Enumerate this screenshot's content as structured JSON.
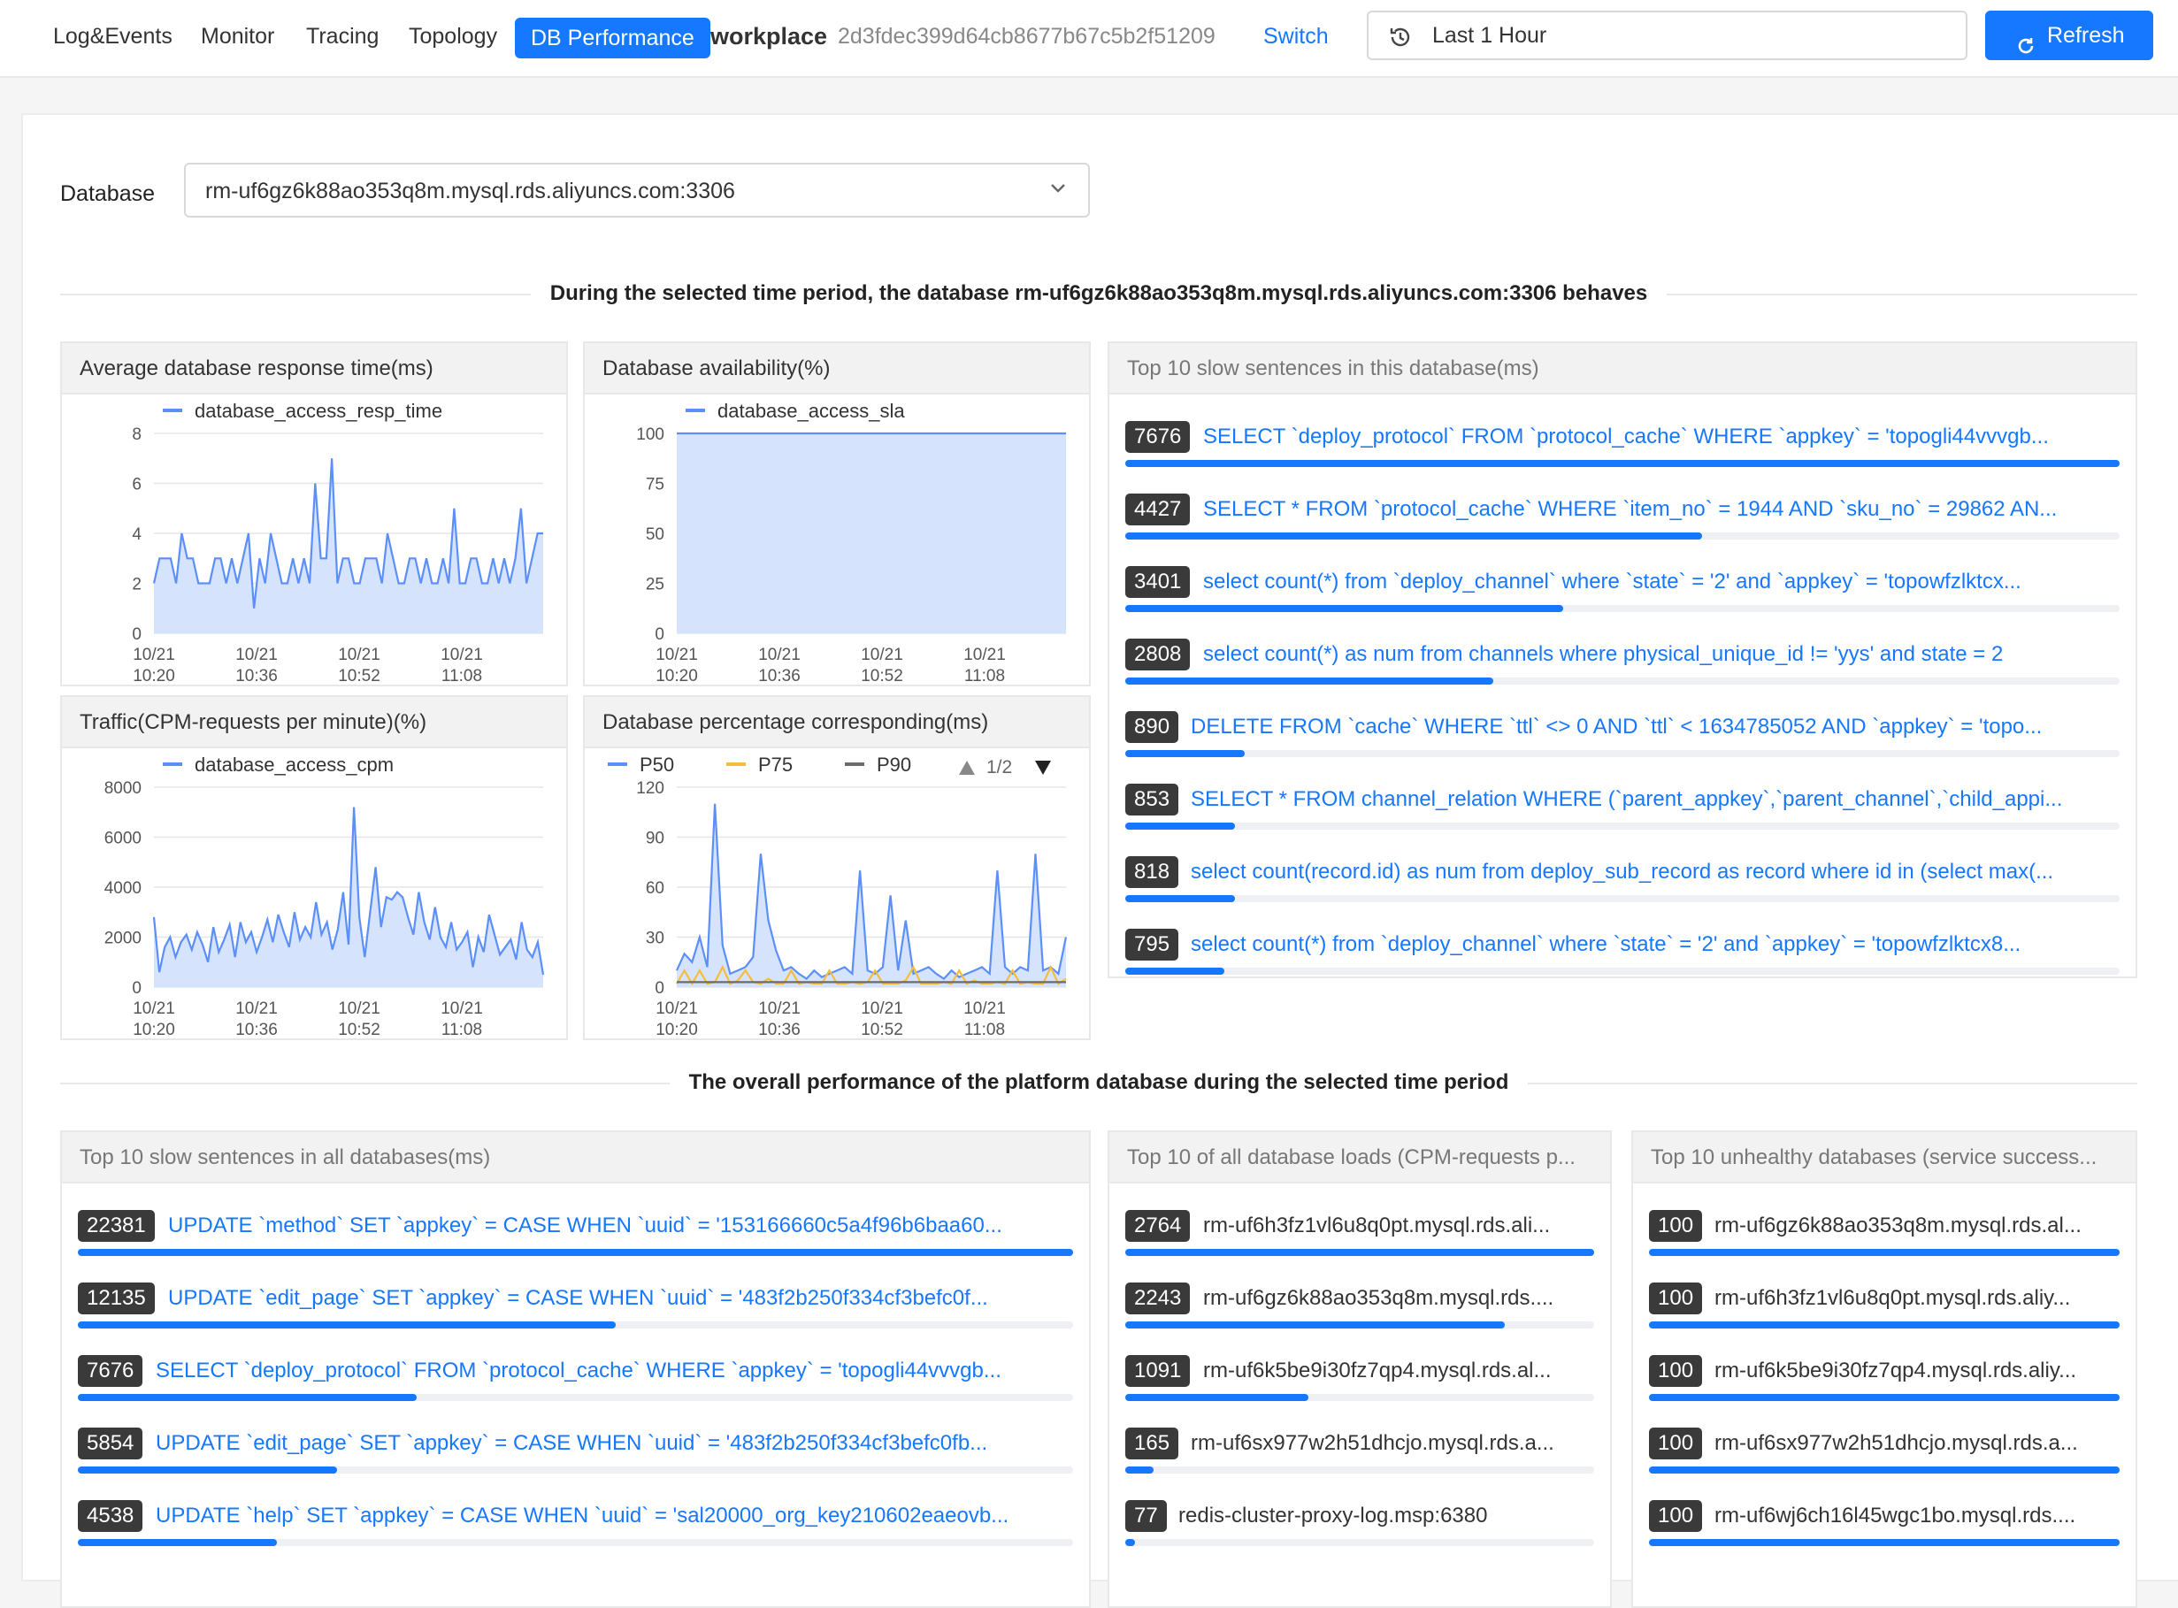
{
  "nav": {
    "tabs": [
      {
        "label": "Log&Events",
        "active": false
      },
      {
        "label": "Monitor",
        "active": false
      },
      {
        "label": "Tracing",
        "active": false
      },
      {
        "label": "Topology",
        "active": false
      },
      {
        "label": "DB Performance",
        "active": true
      }
    ],
    "workspace_label": "workplace",
    "workspace_id": "2d3fdec399d64cb8677b67c5b2f51209",
    "switch_label": "Switch",
    "time_range": "Last 1 Hour",
    "refresh_label": "Refresh"
  },
  "filter": {
    "database_label": "Database",
    "database_value": "rm-uf6gz6k88ao353q8m.mysql.rds.aliyuncs.com:3306"
  },
  "section1_title": "During the selected time period, the database rm-uf6gz6k88ao353q8m.mysql.rds.aliyuncs.com:3306 behaves",
  "section2_title": "The overall performance of the platform database during the selected time period",
  "colors": {
    "accent": "#1677ff",
    "series_blue": "#5b8ff9",
    "area_fill": "#d6e3fd",
    "p75": "#f4bd3c",
    "p90": "#6b6b6b"
  },
  "panels": {
    "resp_time": "Average database response time(ms)",
    "availability": "Database availability(%)",
    "traffic": "Traffic(CPM-requests per minute)(%)",
    "percentiles": "Database percentage corresponding(ms)",
    "top_slow_db": "Top 10 slow sentences in this database(ms)",
    "top_slow_all": "Top 10 slow sentences in all databases(ms)",
    "top_loads": "Top 10 of all database loads (CPM-requests p...",
    "top_unhealthy": "Top 10 unhealthy databases (service success..."
  },
  "chart_data": [
    {
      "type": "area",
      "title": "Average database response time(ms)",
      "x_ticks": [
        [
          "10/21",
          "10:20"
        ],
        [
          "10/21",
          "10:36"
        ],
        [
          "10/21",
          "10:52"
        ],
        [
          "10/21",
          "11:08"
        ]
      ],
      "ylim": [
        0,
        8
      ],
      "y_ticks": [
        0,
        2,
        4,
        6,
        8
      ],
      "series": [
        {
          "name": "database_access_resp_time",
          "values": [
            2,
            3,
            3,
            3,
            2,
            4,
            3,
            3,
            2,
            2,
            2,
            3,
            3,
            2,
            3,
            2,
            3,
            4,
            1,
            3,
            2,
            4,
            3,
            2,
            2,
            3,
            2,
            3,
            2,
            6,
            3,
            3,
            7,
            2,
            3,
            3,
            2,
            2,
            3,
            3,
            3,
            2,
            4,
            3,
            2,
            2,
            3,
            3,
            2,
            3,
            2,
            2,
            3,
            2,
            5,
            2,
            2,
            3,
            3,
            2,
            2,
            3,
            2,
            3,
            2,
            3,
            5,
            2,
            3,
            4,
            4
          ]
        }
      ]
    },
    {
      "type": "area",
      "title": "Database availability(%)",
      "x_ticks": [
        [
          "10/21",
          "10:20"
        ],
        [
          "10/21",
          "10:36"
        ],
        [
          "10/21",
          "10:52"
        ],
        [
          "10/21",
          "11:08"
        ]
      ],
      "ylim": [
        0,
        100
      ],
      "y_ticks": [
        0,
        25,
        50,
        75,
        100
      ],
      "series": [
        {
          "name": "database_access_sla",
          "values": [
            100,
            100
          ]
        }
      ]
    },
    {
      "type": "area",
      "title": "Traffic(CPM-requests per minute)(%)",
      "x_ticks": [
        [
          "10/21",
          "10:20"
        ],
        [
          "10/21",
          "10:36"
        ],
        [
          "10/21",
          "10:52"
        ],
        [
          "10/21",
          "11:08"
        ]
      ],
      "ylim": [
        0,
        8000
      ],
      "y_ticks": [
        0,
        2000,
        4000,
        6000,
        8000
      ],
      "series": [
        {
          "name": "database_access_cpm",
          "values": [
            2800,
            600,
            1600,
            2000,
            1200,
            1800,
            2100,
            1500,
            2200,
            1700,
            1000,
            2400,
            1400,
            1900,
            2500,
            1200,
            2600,
            1800,
            2200,
            1400,
            2000,
            2700,
            1800,
            2900,
            2200,
            1600,
            3000,
            1900,
            2400,
            2000,
            3400,
            2100,
            2600,
            1500,
            2300,
            3800,
            1700,
            7200,
            2800,
            1200,
            3000,
            4800,
            2400,
            3600,
            3500,
            3800,
            3600,
            2800,
            2100,
            3800,
            2600,
            1900,
            3200,
            2000,
            1600,
            2600,
            1500,
            1800,
            2200,
            800,
            2000,
            1400,
            2900,
            2100,
            1300,
            1600,
            1900,
            1100,
            2600,
            1500,
            1200,
            1800,
            500
          ]
        }
      ]
    },
    {
      "type": "line",
      "title": "Database percentage corresponding(ms)",
      "x_ticks": [
        [
          "10/21",
          "10:20"
        ],
        [
          "10/21",
          "10:36"
        ],
        [
          "10/21",
          "10:52"
        ],
        [
          "10/21",
          "11:08"
        ]
      ],
      "ylim": [
        0,
        120
      ],
      "y_ticks": [
        0,
        30,
        60,
        90,
        120
      ],
      "legend_page": "1/2",
      "series": [
        {
          "name": "P50",
          "values": [
            10,
            20,
            15,
            30,
            12,
            110,
            25,
            8,
            10,
            12,
            18,
            80,
            40,
            22,
            10,
            12,
            8,
            5,
            10,
            6,
            8,
            10,
            12,
            8,
            70,
            10,
            8,
            12,
            55,
            10,
            40,
            8,
            10,
            12,
            8,
            5,
            10,
            6,
            8,
            10,
            12,
            8,
            70,
            12,
            8,
            12,
            10,
            80,
            10,
            12,
            8,
            30
          ]
        },
        {
          "name": "P75",
          "values": [
            2,
            10,
            2,
            10,
            2,
            3,
            12,
            2,
            4,
            10,
            3,
            2,
            5,
            2,
            2,
            10,
            2,
            3,
            2,
            2,
            10,
            2,
            2,
            3,
            2,
            3,
            10,
            2,
            2,
            2,
            4,
            12,
            2,
            2,
            2,
            3,
            2,
            10,
            2,
            4,
            2,
            2,
            3,
            2,
            10,
            2,
            3,
            2,
            2,
            12,
            2,
            5
          ]
        },
        {
          "name": "P90",
          "values": [
            3,
            3,
            3,
            3,
            3,
            3,
            3,
            3,
            3,
            3,
            3,
            3,
            3,
            3,
            3,
            3,
            3,
            3,
            3,
            3,
            3,
            3,
            3,
            3,
            3,
            3,
            3,
            3,
            3,
            3,
            3,
            3,
            3,
            3,
            3,
            3,
            3,
            3,
            3,
            3,
            3,
            3,
            3,
            3,
            3,
            3,
            3,
            3,
            3,
            3,
            3,
            3
          ]
        }
      ]
    }
  ],
  "top_slow_db": [
    {
      "value": "7676",
      "text": "SELECT `deploy_protocol` FROM `protocol_cache` WHERE `appkey` = 'topogli44vvvgb...",
      "fill": 1.0
    },
    {
      "value": "4427",
      "text": "SELECT * FROM `protocol_cache` WHERE `item_no` = 1944 AND `sku_no` = 29862 AN...",
      "fill": 0.58
    },
    {
      "value": "3401",
      "text": "select count(*) from `deploy_channel` where `state` = '2' and `appkey` = 'topowfzlktcx...",
      "fill": 0.44
    },
    {
      "value": "2808",
      "text": "select count(*) as num from channels where physical_unique_id != 'yys' and state = 2",
      "fill": 0.37
    },
    {
      "value": "890",
      "text": "DELETE FROM `cache` WHERE `ttl` <> 0 AND `ttl` < 1634785052 AND `appkey` = 'topo...",
      "fill": 0.12
    },
    {
      "value": "853",
      "text": "SELECT * FROM channel_relation WHERE (`parent_appkey`,`parent_channel`,`child_appi...",
      "fill": 0.11
    },
    {
      "value": "818",
      "text": "select count(record.id) as num from deploy_sub_record as record where id in (select max(...",
      "fill": 0.11
    },
    {
      "value": "795",
      "text": "select count(*) from `deploy_channel` where `state` = '2' and `appkey` = 'topowfzlktcx8...",
      "fill": 0.1
    }
  ],
  "top_slow_all": [
    {
      "value": "22381",
      "text": "UPDATE `method` SET `appkey` = CASE WHEN `uuid` = '153166660c5a4f96b6baa60...",
      "fill": 1.0
    },
    {
      "value": "12135",
      "text": "UPDATE `edit_page` SET `appkey` = CASE WHEN `uuid` = '483f2b250f334cf3befc0f...",
      "fill": 0.54
    },
    {
      "value": "7676",
      "text": "SELECT `deploy_protocol` FROM `protocol_cache` WHERE `appkey` = 'topogli44vvvgb...",
      "fill": 0.34
    },
    {
      "value": "5854",
      "text": "UPDATE `edit_page` SET `appkey` = CASE WHEN `uuid` = '483f2b250f334cf3befc0fb...",
      "fill": 0.26
    },
    {
      "value": "4538",
      "text": "UPDATE `help` SET `appkey` = CASE WHEN `uuid` = 'sal20000_org_key210602eaeovb...",
      "fill": 0.2
    }
  ],
  "top_loads": [
    {
      "value": "2764",
      "text": "rm-uf6h3fz1vl6u8q0pt.mysql.rds.ali...",
      "fill": 1.0
    },
    {
      "value": "2243",
      "text": "rm-uf6gz6k88ao353q8m.mysql.rds....",
      "fill": 0.81
    },
    {
      "value": "1091",
      "text": "rm-uf6k5be9i30fz7qp4.mysql.rds.al...",
      "fill": 0.39
    },
    {
      "value": "165",
      "text": "rm-uf6sx977w2h51dhcjo.mysql.rds.a...",
      "fill": 0.06
    },
    {
      "value": "77",
      "text": "redis-cluster-proxy-log.msp:6380",
      "fill": 0.02
    }
  ],
  "top_unhealthy": [
    {
      "value": "100",
      "text": "rm-uf6gz6k88ao353q8m.mysql.rds.al...",
      "fill": 1.0
    },
    {
      "value": "100",
      "text": "rm-uf6h3fz1vl6u8q0pt.mysql.rds.aliy...",
      "fill": 1.0
    },
    {
      "value": "100",
      "text": "rm-uf6k5be9i30fz7qp4.mysql.rds.aliy...",
      "fill": 1.0
    },
    {
      "value": "100",
      "text": "rm-uf6sx977w2h51dhcjo.mysql.rds.a...",
      "fill": 1.0
    },
    {
      "value": "100",
      "text": "rm-uf6wj6ch16l45wgc1bo.mysql.rds....",
      "fill": 1.0
    }
  ]
}
